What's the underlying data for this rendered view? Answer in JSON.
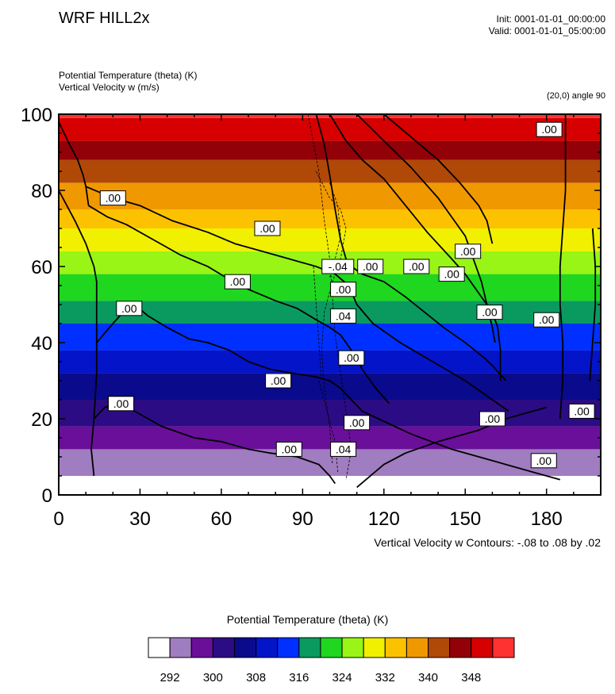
{
  "header": {
    "title": "WRF HILL2x",
    "init": "Init: 0001-01-01_00:00:00",
    "valid": "Valid: 0001-01-01_05:00:00",
    "field1": "Potential Temperature (theta)     (K)",
    "field2": "Vertical Velocity w    (m/s)",
    "subtitle": "(20,0) angle 90",
    "contour_note": "Vertical Velocity w Contours: -.08 to .08 by .02",
    "colorbar_title": "Potential Temperature (theta)     (K)"
  },
  "chart_data": {
    "type": "heatmap",
    "title": "WRF HILL2x",
    "xlim": [
      0,
      200
    ],
    "ylim": [
      0,
      100
    ],
    "x_ticks": [
      0,
      30,
      60,
      90,
      120,
      150,
      180
    ],
    "y_ticks": [
      0,
      20,
      40,
      60,
      80,
      100
    ],
    "fill_bands": [
      {
        "y0": 0,
        "y1": 5,
        "color": "#ffffff"
      },
      {
        "y0": 5,
        "y1": 12,
        "color": "#a07cc0"
      },
      {
        "y0": 12,
        "y1": 18,
        "color": "#6a0f9a"
      },
      {
        "y0": 18,
        "y1": 25,
        "color": "#2c0c84"
      },
      {
        "y0": 25,
        "y1": 32,
        "color": "#0a0a8c"
      },
      {
        "y0": 32,
        "y1": 38,
        "color": "#0414c8"
      },
      {
        "y0": 38,
        "y1": 45,
        "color": "#0030ff"
      },
      {
        "y0": 45,
        "y1": 51,
        "color": "#0a9a60"
      },
      {
        "y0": 51,
        "y1": 58,
        "color": "#1ed71e"
      },
      {
        "y0": 58,
        "y1": 64,
        "color": "#98f515"
      },
      {
        "y0": 64,
        "y1": 70,
        "color": "#f0f000"
      },
      {
        "y0": 70,
        "y1": 75,
        "color": "#fcc200"
      },
      {
        "y0": 75,
        "y1": 82,
        "color": "#f09800"
      },
      {
        "y0": 82,
        "y1": 88,
        "color": "#b04808"
      },
      {
        "y0": 88,
        "y1": 93,
        "color": "#920008"
      },
      {
        "y0": 93,
        "y1": 99,
        "color": "#d60000"
      },
      {
        "y0": 99,
        "y1": 100,
        "color": "#ff3232"
      }
    ],
    "contour_lines": [
      {
        "style": "solid",
        "points": [
          [
            0,
            98
          ],
          [
            4,
            92
          ],
          [
            7,
            88
          ],
          [
            9,
            84
          ],
          [
            10,
            81
          ],
          [
            11,
            76
          ]
        ]
      },
      {
        "style": "solid",
        "points": [
          [
            11,
            76
          ],
          [
            18,
            73
          ],
          [
            25,
            71
          ],
          [
            35,
            67
          ],
          [
            45,
            63
          ],
          [
            55,
            60
          ],
          [
            62,
            57
          ],
          [
            70,
            54
          ],
          [
            80,
            51
          ],
          [
            88,
            49
          ],
          [
            95,
            46
          ],
          [
            100,
            44
          ],
          [
            104,
            42
          ],
          [
            108,
            38
          ],
          [
            112,
            33
          ],
          [
            117,
            28
          ],
          [
            122,
            24
          ]
        ]
      },
      {
        "style": "solid",
        "points": [
          [
            10,
            81
          ],
          [
            20,
            78
          ],
          [
            30,
            76
          ],
          [
            42,
            72
          ],
          [
            55,
            69
          ],
          [
            65,
            66
          ],
          [
            75,
            64
          ],
          [
            85,
            62
          ],
          [
            95,
            60
          ],
          [
            102,
            58
          ],
          [
            107,
            55
          ],
          [
            110,
            50
          ],
          [
            116,
            45
          ],
          [
            126,
            40
          ],
          [
            138,
            35
          ],
          [
            150,
            30
          ],
          [
            158,
            26
          ],
          [
            166,
            22
          ]
        ]
      },
      {
        "style": "solid",
        "points": [
          [
            0,
            80
          ],
          [
            6,
            72
          ],
          [
            10,
            66
          ],
          [
            13,
            60
          ],
          [
            14,
            56
          ],
          [
            14,
            40
          ],
          [
            14,
            32
          ],
          [
            13,
            20
          ],
          [
            12,
            12
          ],
          [
            13,
            5
          ]
        ]
      },
      {
        "style": "solid",
        "points": [
          [
            14,
            40
          ],
          [
            20,
            45
          ],
          [
            25,
            49
          ],
          [
            28,
            50
          ],
          [
            33,
            47
          ],
          [
            40,
            44
          ],
          [
            48,
            41
          ],
          [
            55,
            40
          ],
          [
            63,
            38
          ],
          [
            70,
            35
          ],
          [
            78,
            33
          ],
          [
            86,
            32
          ],
          [
            95,
            31
          ],
          [
            100,
            30
          ],
          [
            104,
            28
          ],
          [
            108,
            25
          ],
          [
            112,
            22
          ],
          [
            118,
            20
          ],
          [
            130,
            16
          ],
          [
            145,
            12
          ],
          [
            160,
            9
          ],
          [
            175,
            6
          ],
          [
            185,
            4
          ]
        ]
      },
      {
        "style": "solid",
        "points": [
          [
            13,
            20
          ],
          [
            17,
            23
          ],
          [
            22,
            24
          ],
          [
            28,
            22
          ],
          [
            38,
            18
          ],
          [
            50,
            15
          ],
          [
            60,
            14
          ],
          [
            70,
            12
          ],
          [
            78,
            11
          ],
          [
            88,
            10
          ],
          [
            96,
            8
          ],
          [
            100,
            5
          ],
          [
            102,
            3
          ]
        ]
      },
      {
        "style": "solid",
        "points": [
          [
            95,
            100
          ],
          [
            98,
            92
          ],
          [
            100,
            84
          ],
          [
            102,
            75
          ],
          [
            104,
            67
          ],
          [
            106,
            62
          ],
          [
            108,
            60
          ],
          [
            112,
            58
          ],
          [
            120,
            56
          ],
          [
            128,
            52
          ],
          [
            135,
            48
          ],
          [
            142,
            44
          ],
          [
            150,
            40
          ],
          [
            157,
            36
          ],
          [
            160,
            34
          ],
          [
            165,
            30
          ]
        ]
      },
      {
        "style": "solid",
        "points": [
          [
            100,
            100
          ],
          [
            106,
            93
          ],
          [
            112,
            88
          ],
          [
            120,
            83
          ],
          [
            128,
            76
          ],
          [
            136,
            69
          ],
          [
            145,
            62
          ],
          [
            150,
            58
          ],
          [
            155,
            53
          ],
          [
            160,
            48
          ],
          [
            162,
            44
          ],
          [
            163,
            38
          ],
          [
            163,
            30
          ]
        ]
      },
      {
        "style": "solid",
        "points": [
          [
            110,
            100
          ],
          [
            120,
            93
          ],
          [
            130,
            86
          ],
          [
            140,
            78
          ],
          [
            146,
            72
          ],
          [
            150,
            68
          ],
          [
            153,
            62
          ],
          [
            156,
            56
          ],
          [
            158,
            50
          ],
          [
            160,
            44
          ],
          [
            161,
            40
          ]
        ]
      },
      {
        "style": "solid",
        "points": [
          [
            120,
            100
          ],
          [
            130,
            94
          ],
          [
            140,
            88
          ],
          [
            148,
            82
          ],
          [
            155,
            76
          ],
          [
            158,
            72
          ],
          [
            160,
            66
          ]
        ]
      },
      {
        "style": "solid",
        "points": [
          [
            185,
            20
          ],
          [
            186,
            30
          ],
          [
            186,
            40
          ],
          [
            185,
            50
          ],
          [
            185,
            60
          ],
          [
            186,
            70
          ],
          [
            187,
            80
          ],
          [
            187,
            90
          ],
          [
            187,
            100
          ]
        ]
      },
      {
        "style": "solid",
        "points": [
          [
            196,
            30
          ],
          [
            197,
            40
          ],
          [
            198,
            50
          ],
          [
            198,
            60
          ],
          [
            197,
            70
          ]
        ]
      },
      {
        "style": "solid",
        "points": [
          [
            110,
            2
          ],
          [
            120,
            8
          ],
          [
            128,
            11
          ],
          [
            140,
            14
          ],
          [
            155,
            17
          ],
          [
            165,
            20
          ],
          [
            175,
            22
          ],
          [
            180,
            23
          ]
        ]
      },
      {
        "style": "dashed",
        "points": [
          [
            92,
            100
          ],
          [
            96,
            85
          ],
          [
            98,
            72
          ],
          [
            100,
            62
          ],
          [
            101,
            52
          ],
          [
            102,
            42
          ],
          [
            104,
            32
          ],
          [
            106,
            22
          ],
          [
            108,
            12
          ],
          [
            106,
            4
          ]
        ]
      },
      {
        "style": "dashed",
        "points": [
          [
            95,
            85
          ],
          [
            100,
            78
          ],
          [
            104,
            75
          ],
          [
            106,
            70
          ],
          [
            104,
            62
          ],
          [
            101,
            56
          ],
          [
            98,
            48
          ],
          [
            97,
            38
          ],
          [
            98,
            28
          ],
          [
            100,
            18
          ],
          [
            101,
            8
          ]
        ]
      },
      {
        "style": "dashed",
        "points": [
          [
            100,
            82
          ],
          [
            103,
            76
          ],
          [
            104,
            68
          ],
          [
            102,
            62
          ],
          [
            100,
            57
          ]
        ]
      },
      {
        "style": "dashed",
        "points": [
          [
            96,
            30
          ],
          [
            99,
            22
          ],
          [
            102,
            14
          ],
          [
            103,
            6
          ]
        ]
      },
      {
        "style": "dashed",
        "points": [
          [
            94,
            60
          ],
          [
            95,
            50
          ],
          [
            96,
            40
          ],
          [
            97,
            30
          ]
        ]
      }
    ],
    "contour_labels": [
      {
        "x": 20,
        "y": 78,
        "text": ".00"
      },
      {
        "x": 77,
        "y": 70,
        "text": ".00"
      },
      {
        "x": 66,
        "y": 56,
        "text": ".00"
      },
      {
        "x": 26,
        "y": 49,
        "text": ".00"
      },
      {
        "x": 23,
        "y": 24,
        "text": ".00"
      },
      {
        "x": 81,
        "y": 30,
        "text": ".00"
      },
      {
        "x": 85,
        "y": 12,
        "text": ".00"
      },
      {
        "x": 103,
        "y": 60,
        "text": "-.04"
      },
      {
        "x": 115,
        "y": 60,
        "text": ".00"
      },
      {
        "x": 105,
        "y": 54,
        "text": ".00"
      },
      {
        "x": 105,
        "y": 47,
        "text": ".04"
      },
      {
        "x": 108,
        "y": 36,
        "text": ".00"
      },
      {
        "x": 110,
        "y": 19,
        "text": ".00"
      },
      {
        "x": 105,
        "y": 12,
        "text": ".04"
      },
      {
        "x": 132,
        "y": 60,
        "text": ".00"
      },
      {
        "x": 145,
        "y": 58,
        "text": ".00"
      },
      {
        "x": 151,
        "y": 64,
        "text": ".00"
      },
      {
        "x": 159,
        "y": 48,
        "text": ".00"
      },
      {
        "x": 160,
        "y": 20,
        "text": ".00"
      },
      {
        "x": 181,
        "y": 96,
        "text": ".00"
      },
      {
        "x": 180,
        "y": 46,
        "text": ".00"
      },
      {
        "x": 179,
        "y": 9,
        "text": ".00"
      },
      {
        "x": 193,
        "y": 22,
        "text": ".00"
      }
    ],
    "colorbar": {
      "colors": [
        "#ffffff",
        "#a07cc0",
        "#6a0f9a",
        "#2c0c84",
        "#0a0a8c",
        "#0414c8",
        "#0030ff",
        "#0a9a60",
        "#1ed71e",
        "#98f515",
        "#f0f000",
        "#fcc200",
        "#f09800",
        "#b04808",
        "#920008",
        "#d60000",
        "#ff3232"
      ],
      "tick_labels": [
        "292",
        "300",
        "308",
        "316",
        "324",
        "332",
        "340",
        "348"
      ]
    }
  }
}
